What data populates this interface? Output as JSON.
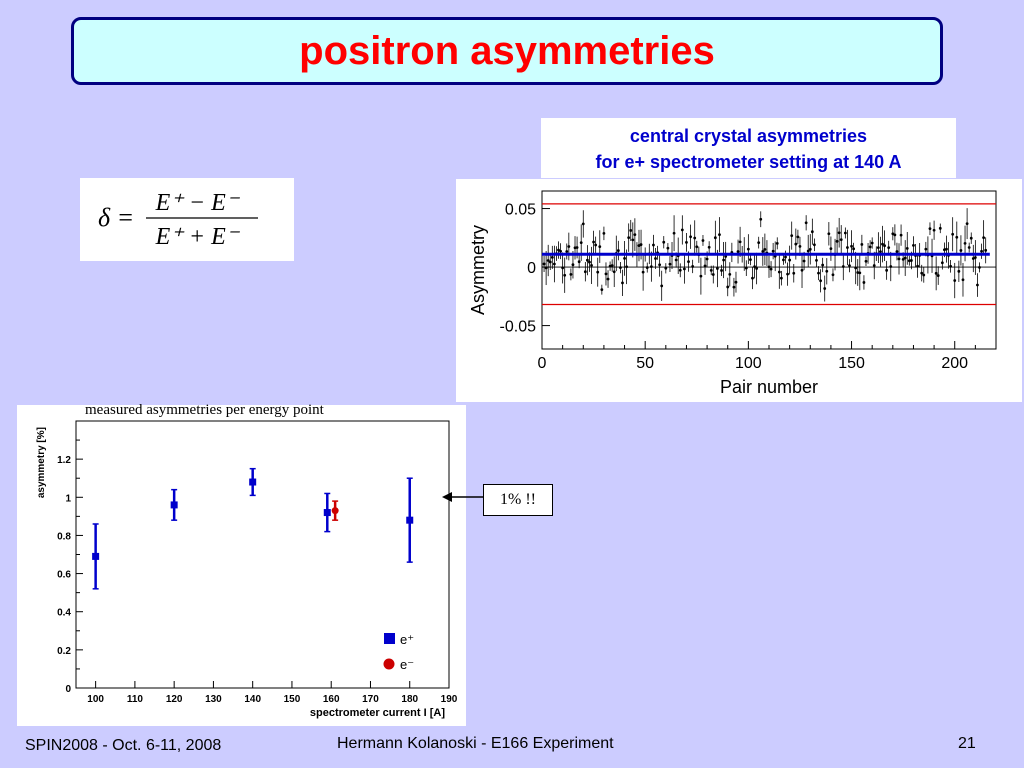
{
  "slide": {
    "title": "positron asymmetries",
    "formula": {
      "lhs": "δ =",
      "numerator": "E⁺ − E⁻",
      "denominator": "E⁺ + E⁻"
    },
    "annotation": "1% !!",
    "footer": {
      "left": "SPIN2008 - Oct. 6-11, 2008",
      "center": "Hermann Kolanoski - E166 Experiment",
      "page": "21"
    }
  },
  "top_caption": {
    "line1": "central crystal asymmetries",
    "line2": "for e+ spectrometer setting at 140 A"
  },
  "bottom_caption": "measured asymmetries per energy point",
  "chart_data": [
    {
      "type": "scatter",
      "xlabel": "Pair number",
      "ylabel": "Asymmetry",
      "xlim": [
        0,
        220
      ],
      "ylim": [
        -0.07,
        0.065
      ],
      "xticks": [
        0,
        50,
        100,
        150,
        200
      ],
      "xtick_labels": [
        "0",
        "50",
        "100",
        "150",
        "200"
      ],
      "yticks": [
        -0.05,
        0,
        0.05
      ],
      "ytick_labels": [
        "-0.05",
        "0",
        "0.05"
      ],
      "mean_line": 0.011,
      "band_lines": [
        0.054,
        -0.032
      ],
      "colors": {
        "points": "#000000",
        "mean": "#0000cc",
        "band": "#dd0000"
      },
      "n_points": 215,
      "grid": false
    },
    {
      "type": "scatter",
      "xlabel": "spectrometer current I [A]",
      "ylabel": "asymmetry [%]",
      "xlim": [
        95,
        190
      ],
      "ylim": [
        0,
        1.4
      ],
      "xticks": [
        100,
        110,
        120,
        130,
        140,
        150,
        160,
        170,
        180,
        190
      ],
      "xtick_labels": [
        "100",
        "110",
        "120",
        "130",
        "140",
        "150",
        "160",
        "170",
        "180",
        "190"
      ],
      "yticks": [
        0,
        0.2,
        0.4,
        0.6,
        0.8,
        1,
        1.2
      ],
      "ytick_labels": [
        "0",
        "0.2",
        "0.4",
        "0.6",
        "0.8",
        "1",
        "1.2"
      ],
      "legend": {
        "placement": "bottom-right"
      },
      "series": [
        {
          "name": "e⁺",
          "color": "#0000cc",
          "marker": "square",
          "points": [
            {
              "x": 100,
              "y": 0.69,
              "err": 0.17
            },
            {
              "x": 120,
              "y": 0.96,
              "err": 0.08
            },
            {
              "x": 140,
              "y": 1.08,
              "err": 0.07
            },
            {
              "x": 159,
              "y": 0.92,
              "err": 0.1
            },
            {
              "x": 180,
              "y": 0.88,
              "err": 0.22
            }
          ]
        },
        {
          "name": "e⁻",
          "color": "#cc0000",
          "marker": "circle",
          "points": [
            {
              "x": 161,
              "y": 0.93,
              "err": 0.05
            }
          ]
        }
      ]
    }
  ]
}
